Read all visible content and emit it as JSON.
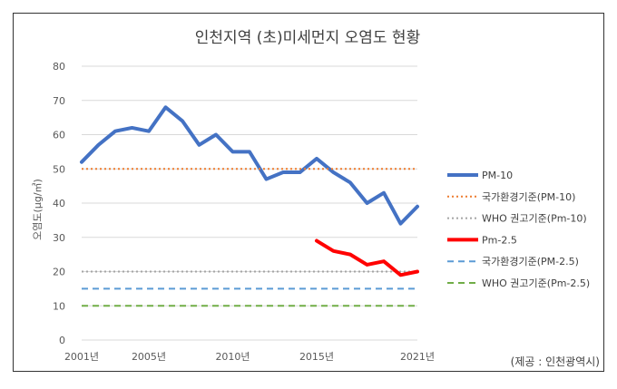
{
  "chart_data": {
    "type": "line",
    "title": "인천지역 (초)미세먼지 오염도 현황",
    "ylabel": "오염도(μg/㎥)",
    "xlabel": "",
    "ylim": [
      0,
      80
    ],
    "yticks": [
      0,
      10,
      20,
      30,
      40,
      50,
      60,
      70,
      80
    ],
    "xlim": [
      2001,
      2021
    ],
    "xticks": [
      {
        "value": 2001,
        "label": "2001년"
      },
      {
        "value": 2005,
        "label": "2005년"
      },
      {
        "value": 2010,
        "label": "2010년"
      },
      {
        "value": 2015,
        "label": "2015년"
      },
      {
        "value": 2021,
        "label": "2021년"
      }
    ],
    "grid": true,
    "legend_position": "right",
    "source": "(제공 : 인천광역시)",
    "series": [
      {
        "name": "PM-10",
        "color": "#4472C4",
        "style": "solid",
        "width": 4,
        "x": [
          2001,
          2002,
          2003,
          2004,
          2005,
          2006,
          2007,
          2008,
          2009,
          2010,
          2011,
          2012,
          2013,
          2014,
          2015,
          2016,
          2017,
          2018,
          2019,
          2020,
          2021
        ],
        "y": [
          52,
          57,
          61,
          62,
          61,
          68,
          64,
          57,
          60,
          55,
          55,
          47,
          49,
          49,
          53,
          49,
          46,
          40,
          43,
          34,
          39
        ]
      },
      {
        "name": "국가환경기준(PM-10)",
        "color": "#ED7D31",
        "style": "dotted",
        "width": 2,
        "x": [
          2001,
          2021
        ],
        "y": [
          50,
          50
        ]
      },
      {
        "name": "WHO 권고기준(Pm-10)",
        "color": "#A5A5A5",
        "style": "dotted",
        "width": 2,
        "x": [
          2001,
          2021
        ],
        "y": [
          20,
          20
        ]
      },
      {
        "name": "Pm-2.5",
        "color": "#FF0000",
        "style": "solid",
        "width": 4,
        "x": [
          2015,
          2016,
          2017,
          2018,
          2019,
          2020,
          2021
        ],
        "y": [
          29,
          26,
          25,
          22,
          23,
          19,
          20
        ]
      },
      {
        "name": "국가환경기준(PM-2.5)",
        "color": "#5B9BD5",
        "style": "dashed",
        "width": 2,
        "x": [
          2001,
          2021
        ],
        "y": [
          15,
          15
        ]
      },
      {
        "name": "WHO 권고기준(Pm-2.5)",
        "color": "#70AD47",
        "style": "dashed",
        "width": 2,
        "x": [
          2001,
          2021
        ],
        "y": [
          10,
          10
        ]
      }
    ]
  }
}
